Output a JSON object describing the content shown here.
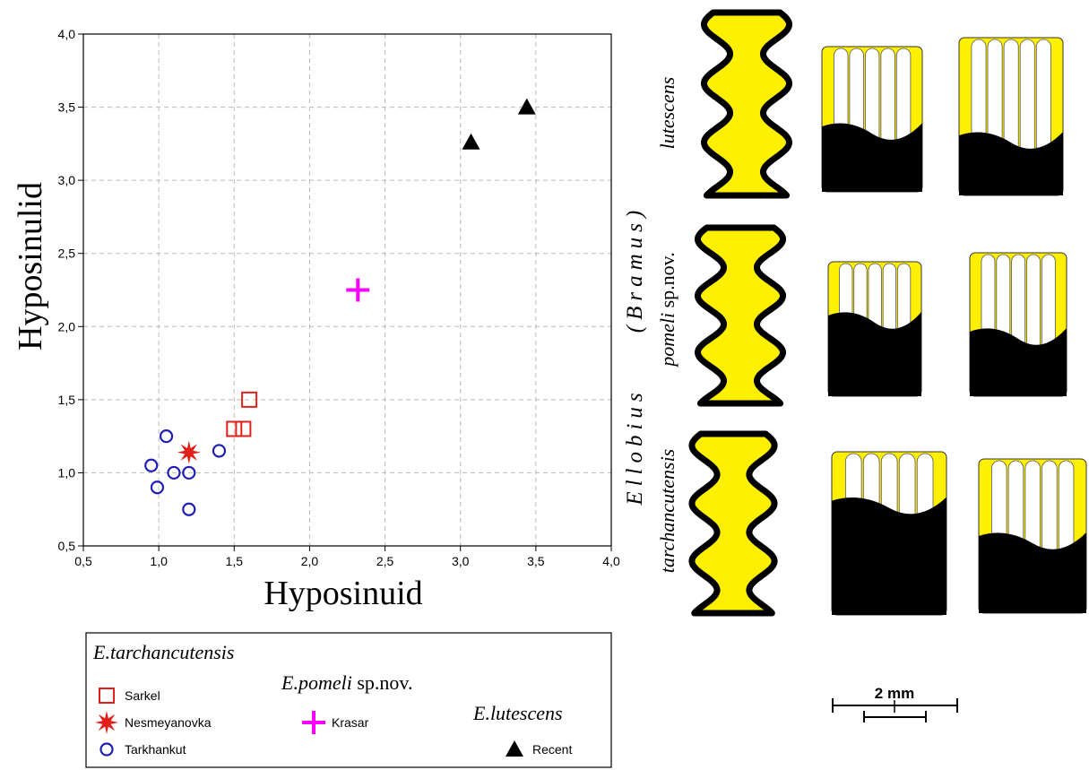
{
  "chart_data": {
    "type": "scatter",
    "xlabel": "Hyposinuid",
    "ylabel": "Hyposinulid",
    "xlim": [
      0.5,
      4.0
    ],
    "ylim": [
      0.5,
      4.0
    ],
    "x_ticks": [
      "0,5",
      "1,0",
      "1,5",
      "2,0",
      "2,5",
      "3,0",
      "3,5",
      "4,0"
    ],
    "y_ticks": [
      "0,5",
      "1,0",
      "1,5",
      "2,0",
      "2,5",
      "3,0",
      "3,5",
      "4,0"
    ],
    "grid": true,
    "series": [
      {
        "name": "Sarkel",
        "marker": "square",
        "color": "#e0201b",
        "points": [
          [
            1.5,
            1.3
          ],
          [
            1.56,
            1.3
          ],
          [
            1.6,
            1.5
          ]
        ]
      },
      {
        "name": "Nesmeyanovka",
        "marker": "star",
        "color": "#e0201b",
        "points": [
          [
            1.2,
            1.14
          ]
        ]
      },
      {
        "name": "Tarkhankut",
        "marker": "circle",
        "color": "#1f1fb4",
        "points": [
          [
            0.95,
            1.05
          ],
          [
            0.99,
            0.9
          ],
          [
            1.05,
            1.25
          ],
          [
            1.1,
            1.0
          ],
          [
            1.2,
            1.0
          ],
          [
            1.2,
            0.75
          ],
          [
            1.4,
            1.15
          ]
        ]
      },
      {
        "name": "Krasar",
        "marker": "plus",
        "color": "#ff00ff",
        "points": [
          [
            2.32,
            2.25
          ]
        ]
      },
      {
        "name": "Recent",
        "marker": "triangle",
        "color": "#000000",
        "points": [
          [
            3.07,
            3.26
          ],
          [
            3.44,
            3.5
          ]
        ]
      }
    ],
    "legend": {
      "placement": "bottom",
      "groups": [
        {
          "title": "E.tarchancutensis",
          "items": [
            "Sarkel",
            "Nesmeyanovka",
            "Tarkhankut"
          ]
        },
        {
          "title": "E.pomeli",
          "title_suffix": " sp.nov.",
          "items": [
            "Krasar"
          ]
        },
        {
          "title": "E.lutescens",
          "items": [
            "Recent"
          ]
        }
      ]
    }
  },
  "figure": {
    "genus_label": "Ellobius",
    "subgenus_label": "(Bramus)",
    "rows": [
      {
        "species": "lutescens",
        "suffix": ""
      },
      {
        "species": "pomeli",
        "suffix": " sp.nov."
      },
      {
        "species": "tarchancutensis",
        "suffix": ""
      }
    ],
    "scale_label": "2 mm",
    "colors": {
      "enamel": "#000000",
      "dentine": "#ffef00"
    }
  }
}
